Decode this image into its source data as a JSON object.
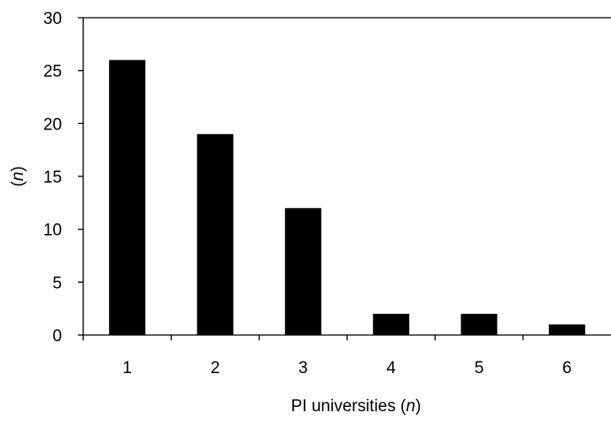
{
  "chart_data": {
    "type": "bar",
    "categories": [
      "1",
      "2",
      "3",
      "4",
      "5",
      "6"
    ],
    "values": [
      26,
      19,
      12,
      2,
      2,
      1
    ],
    "title": "",
    "xlabel": {
      "prefix": "PI universities (",
      "var": "n",
      "suffix": ")"
    },
    "ylabel": {
      "prefix": "(",
      "var": "n",
      "suffix": ")"
    },
    "ylim": [
      0,
      30
    ],
    "yticks": [
      0,
      5,
      10,
      15,
      20,
      25,
      30
    ],
    "grid": false,
    "legend": "none",
    "bar_color": "#000000",
    "axis_color": "#000000"
  }
}
